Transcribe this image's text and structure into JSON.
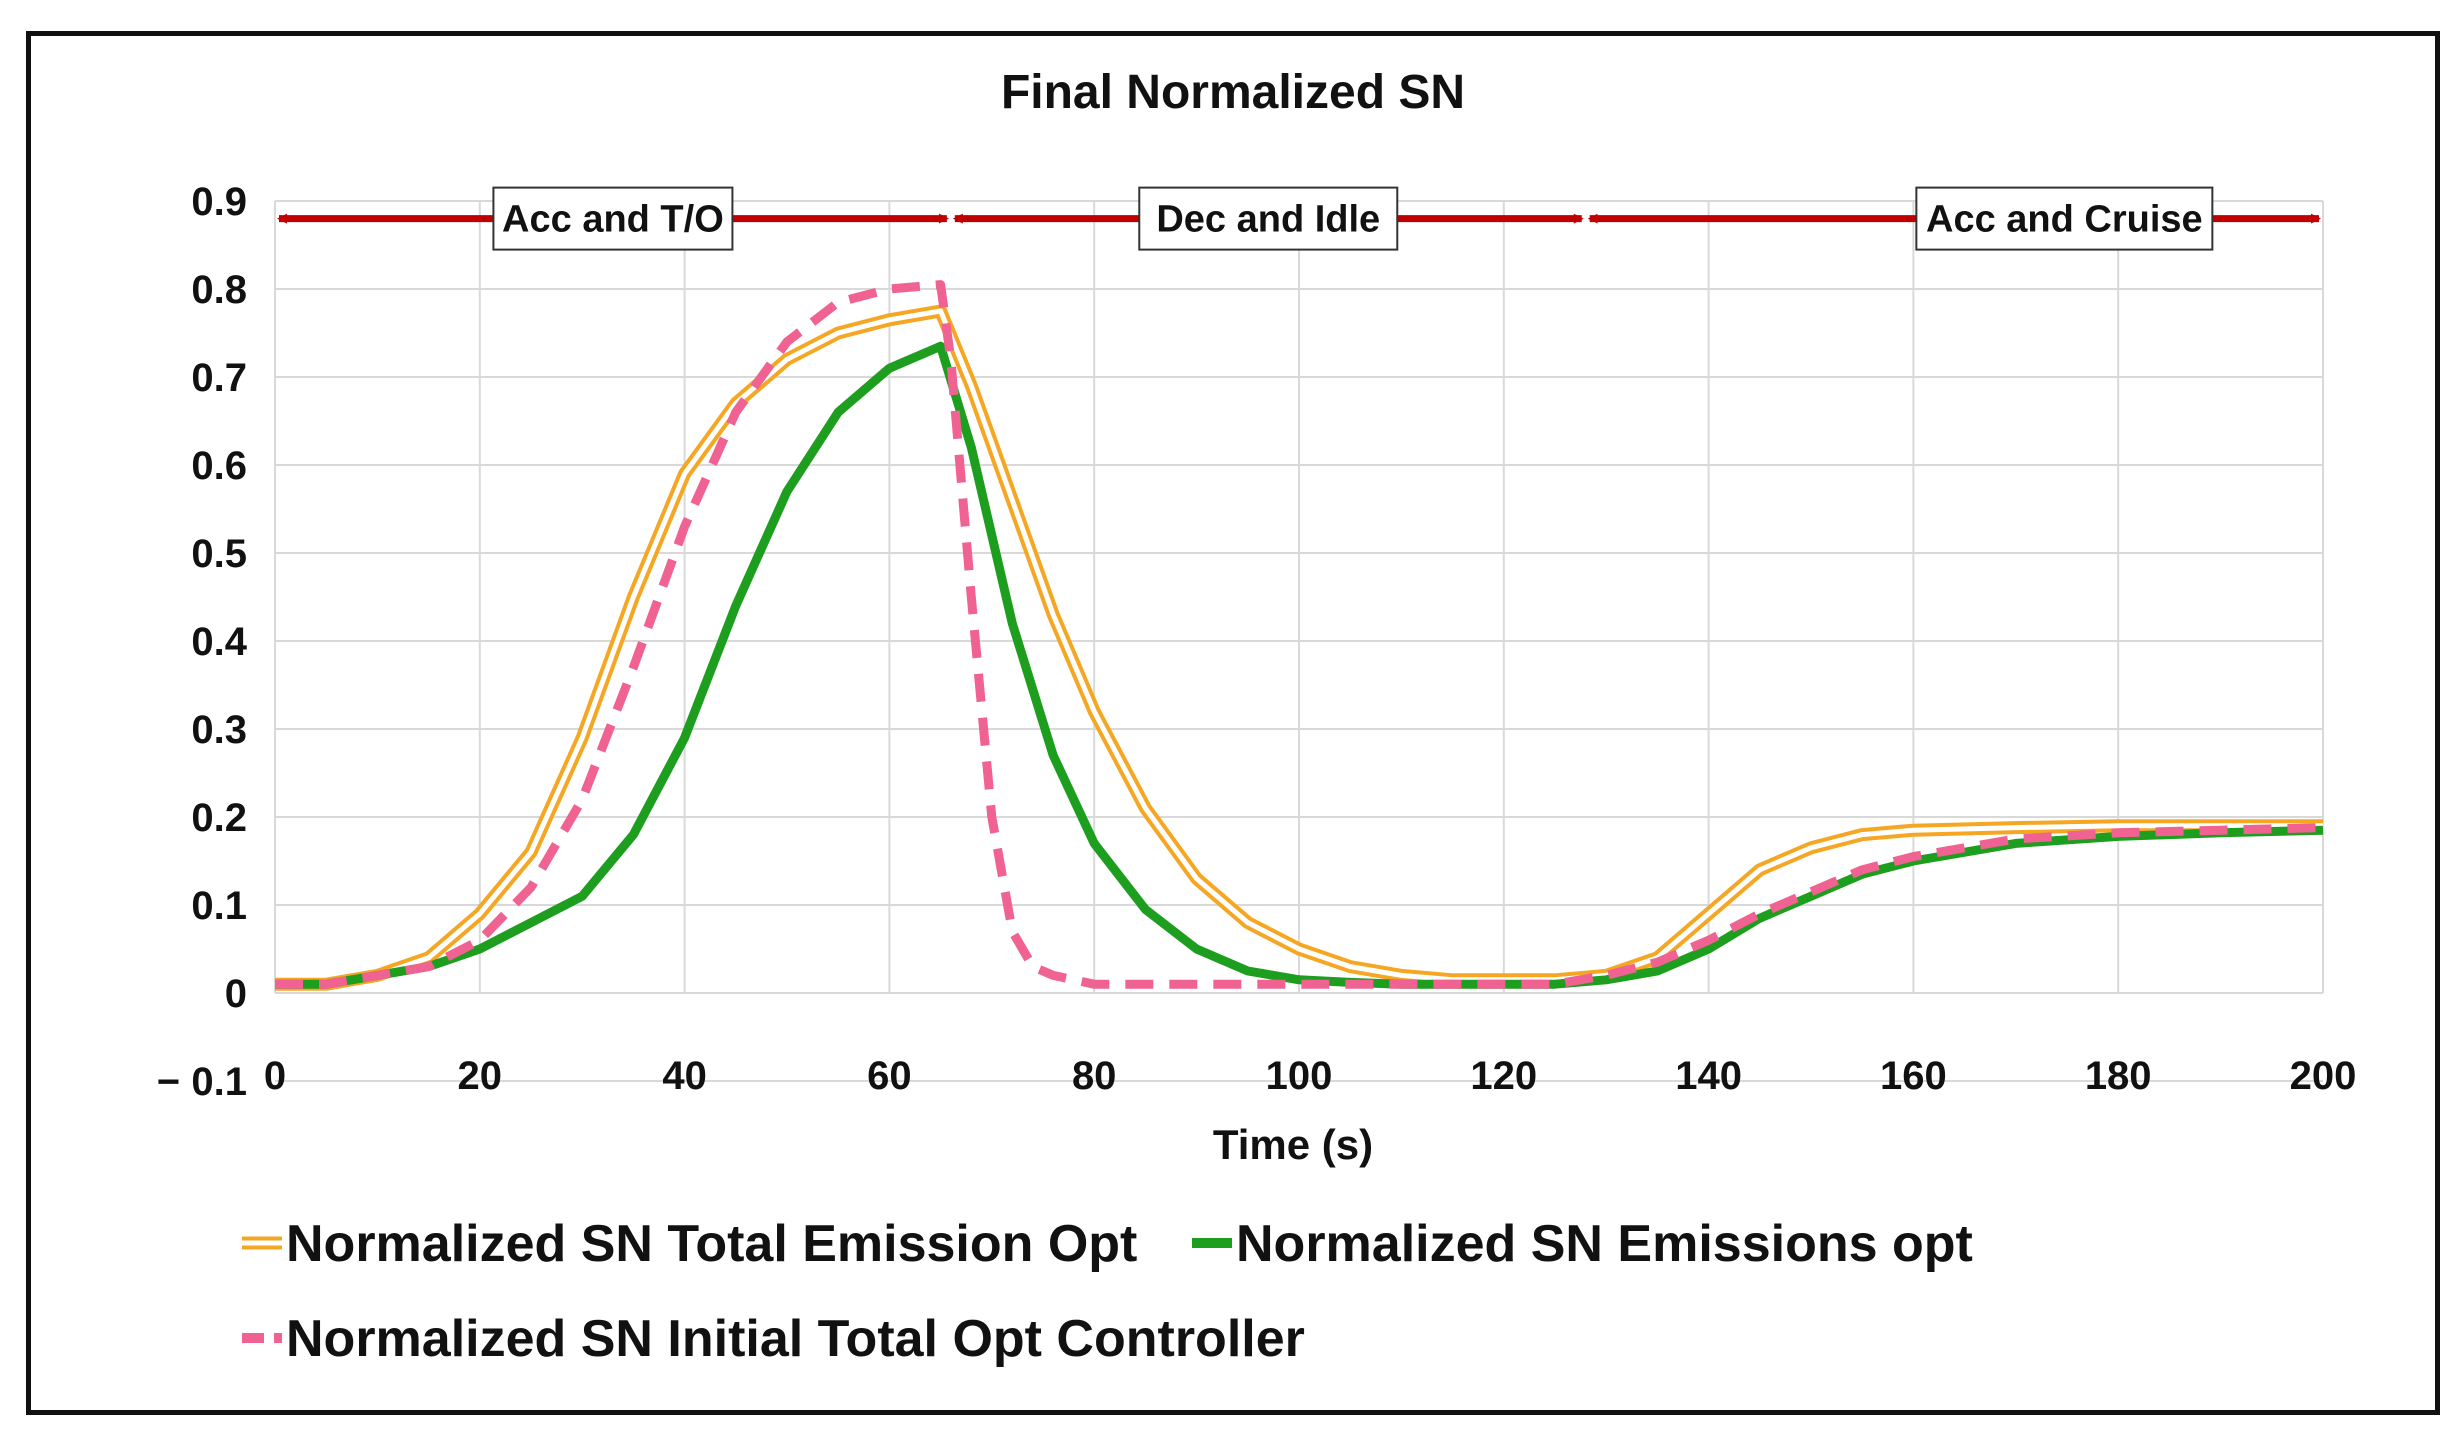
{
  "chart_data": {
    "type": "line",
    "title": "Final Normalized SN",
    "xlabel": "Time (s)",
    "ylabel": "",
    "xlim": [
      0,
      200
    ],
    "ylim": [
      -0.1,
      0.9
    ],
    "xticks": [
      0,
      20,
      40,
      60,
      80,
      100,
      120,
      140,
      160,
      180,
      200
    ],
    "yticks": [
      -0.1,
      0,
      0.1,
      0.2,
      0.3,
      0.4,
      0.5,
      0.6,
      0.7,
      0.8,
      0.9
    ],
    "ytick_labels": [
      "− 0.1",
      "0",
      "0.1",
      "0.2",
      "0.3",
      "0.4",
      "0.5",
      "0.6",
      "0.7",
      "0.8",
      "0.9"
    ],
    "grid": true,
    "phases": [
      {
        "label": "Acc and T/O",
        "start": 0,
        "end": 66
      },
      {
        "label": "Dec and Idle",
        "start": 66,
        "end": 128
      },
      {
        "label": "Acc and Cruise",
        "start": 128,
        "end": 200
      }
    ],
    "series": [
      {
        "name": "Normalized SN Total Emission Opt",
        "color": "#f5a623",
        "style": "double",
        "x": [
          0,
          5,
          10,
          15,
          20,
          25,
          30,
          35,
          40,
          45,
          50,
          55,
          60,
          65,
          68,
          72,
          76,
          80,
          85,
          90,
          95,
          100,
          105,
          110,
          115,
          120,
          125,
          130,
          135,
          140,
          145,
          150,
          155,
          160,
          170,
          180,
          190,
          200
        ],
        "y": [
          0.01,
          0.01,
          0.02,
          0.04,
          0.09,
          0.16,
          0.29,
          0.45,
          0.59,
          0.67,
          0.72,
          0.75,
          0.765,
          0.775,
          0.69,
          0.56,
          0.43,
          0.32,
          0.21,
          0.13,
          0.08,
          0.05,
          0.03,
          0.02,
          0.015,
          0.015,
          0.015,
          0.02,
          0.04,
          0.09,
          0.14,
          0.165,
          0.18,
          0.185,
          0.188,
          0.19,
          0.19,
          0.19
        ]
      },
      {
        "name": "Normalized SN Emissions opt",
        "color": "#1e9e1e",
        "style": "solid",
        "x": [
          0,
          5,
          10,
          15,
          20,
          25,
          30,
          35,
          40,
          45,
          50,
          55,
          60,
          65,
          68,
          72,
          76,
          80,
          85,
          90,
          95,
          100,
          105,
          110,
          115,
          120,
          125,
          130,
          135,
          140,
          145,
          150,
          155,
          160,
          170,
          180,
          190,
          200
        ],
        "y": [
          0.01,
          0.01,
          0.02,
          0.03,
          0.05,
          0.08,
          0.11,
          0.18,
          0.29,
          0.44,
          0.57,
          0.66,
          0.71,
          0.735,
          0.62,
          0.42,
          0.27,
          0.17,
          0.095,
          0.05,
          0.025,
          0.015,
          0.012,
          0.01,
          0.01,
          0.01,
          0.01,
          0.015,
          0.025,
          0.05,
          0.085,
          0.11,
          0.135,
          0.15,
          0.17,
          0.178,
          0.182,
          0.185
        ]
      },
      {
        "name": "Normalized SN Initial Total Opt Controller",
        "color": "#f06292",
        "style": "dashed",
        "x": [
          0,
          5,
          10,
          15,
          20,
          25,
          30,
          35,
          40,
          45,
          50,
          55,
          60,
          65,
          66,
          68,
          70,
          72,
          74,
          76,
          78,
          80,
          85,
          90,
          95,
          100,
          105,
          110,
          115,
          120,
          125,
          130,
          135,
          140,
          145,
          150,
          155,
          160,
          170,
          180,
          190,
          200
        ],
        "y": [
          0.01,
          0.01,
          0.02,
          0.03,
          0.06,
          0.12,
          0.22,
          0.37,
          0.53,
          0.66,
          0.74,
          0.785,
          0.8,
          0.805,
          0.72,
          0.45,
          0.2,
          0.07,
          0.03,
          0.02,
          0.015,
          0.01,
          0.01,
          0.01,
          0.01,
          0.01,
          0.01,
          0.01,
          0.01,
          0.01,
          0.01,
          0.02,
          0.035,
          0.06,
          0.09,
          0.115,
          0.14,
          0.155,
          0.175,
          0.182,
          0.185,
          0.188
        ]
      }
    ],
    "legend": {
      "placement": "bottom",
      "entries": [
        "Normalized SN Total Emission Opt",
        "Normalized SN Emissions opt",
        "Normalized SN Initial Total Opt Controller"
      ]
    },
    "colors": {
      "arrow": "#c00000",
      "grid": "#d9d9d9",
      "frame": "#111111"
    }
  }
}
